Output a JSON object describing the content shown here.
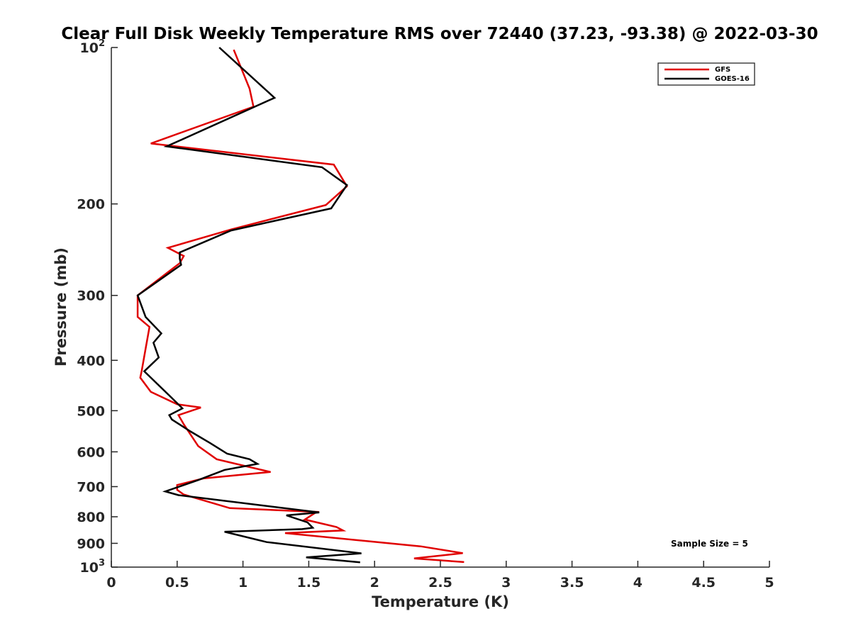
{
  "chart_data": {
    "type": "line",
    "title": "Clear Full Disk Weekly Temperature RMS over 72440 (37.23, -93.38) @ 2022-03-30",
    "xlabel": "Temperature (K)",
    "ylabel": "Pressure (mb)",
    "xlim": [
      0,
      5
    ],
    "ylim": [
      100,
      1000
    ],
    "y_scale": "log",
    "y_reversed": true,
    "x_ticks": [
      {
        "value": 0,
        "label": "0"
      },
      {
        "value": 0.5,
        "label": "0.5"
      },
      {
        "value": 1,
        "label": "1"
      },
      {
        "value": 1.5,
        "label": "1.5"
      },
      {
        "value": 2,
        "label": "2"
      },
      {
        "value": 2.5,
        "label": "2.5"
      },
      {
        "value": 3,
        "label": "3"
      },
      {
        "value": 3.5,
        "label": "3.5"
      },
      {
        "value": 4,
        "label": "4"
      },
      {
        "value": 4.5,
        "label": "4.5"
      },
      {
        "value": 5,
        "label": "5"
      }
    ],
    "y_ticks": [
      {
        "value": 100,
        "base": "10",
        "exp": "2"
      },
      {
        "value": 200,
        "label": "200"
      },
      {
        "value": 300,
        "label": "300"
      },
      {
        "value": 400,
        "label": "400"
      },
      {
        "value": 500,
        "label": "500"
      },
      {
        "value": 600,
        "label": "600"
      },
      {
        "value": 700,
        "label": "700"
      },
      {
        "value": 800,
        "label": "800"
      },
      {
        "value": 900,
        "label": "900"
      },
      {
        "value": 1000,
        "base": "10",
        "exp": "3"
      }
    ],
    "grid": false,
    "legend": "top-right",
    "annotation": "Sample Size = 5",
    "series": [
      {
        "name": "GFS",
        "color": "#e00000",
        "x": [
          0.93,
          1.05,
          1.08,
          0.3,
          1.69,
          1.79,
          1.63,
          0.91,
          0.43,
          0.55,
          0.52,
          0.2,
          0.2,
          0.29,
          0.26,
          0.23,
          0.22,
          0.3,
          0.5,
          0.68,
          0.51,
          0.55,
          0.6,
          0.66,
          0.8,
          1.05,
          1.21,
          0.7,
          0.5,
          0.5,
          0.55,
          0.9,
          1.56,
          1.47,
          1.71,
          1.76,
          1.32,
          2.35,
          2.67,
          2.3,
          2.68
        ],
        "y": [
          101,
          120,
          130,
          153,
          168,
          185,
          201,
          224,
          243,
          252,
          260,
          300,
          330,
          345,
          380,
          420,
          432,
          460,
          486,
          493,
          510,
          531,
          555,
          585,
          620,
          642,
          656,
          675,
          695,
          710,
          725,
          770,
          783,
          810,
          837,
          850,
          860,
          912,
          940,
          962,
          978
        ]
      },
      {
        "name": "GOES-16",
        "color": "#000000",
        "x": [
          0.82,
          1.24,
          0.42,
          1.6,
          1.79,
          1.67,
          0.91,
          0.52,
          0.52,
          0.53,
          0.2,
          0.26,
          0.38,
          0.32,
          0.36,
          0.25,
          0.45,
          0.54,
          0.44,
          0.46,
          0.6,
          0.75,
          0.88,
          1.05,
          1.11,
          0.86,
          0.66,
          0.41,
          0.51,
          1.58,
          1.33,
          1.49,
          1.53,
          1.45,
          0.86,
          1.18,
          1.9,
          1.48,
          1.89
        ],
        "y": [
          100,
          125,
          155,
          170,
          184,
          204,
          225,
          248,
          255,
          262,
          300,
          330,
          355,
          370,
          395,
          420,
          470,
          495,
          510,
          520,
          548,
          577,
          605,
          620,
          633,
          650,
          680,
          715,
          727,
          785,
          795,
          820,
          840,
          845,
          855,
          895,
          941,
          958,
          979
        ]
      }
    ]
  }
}
